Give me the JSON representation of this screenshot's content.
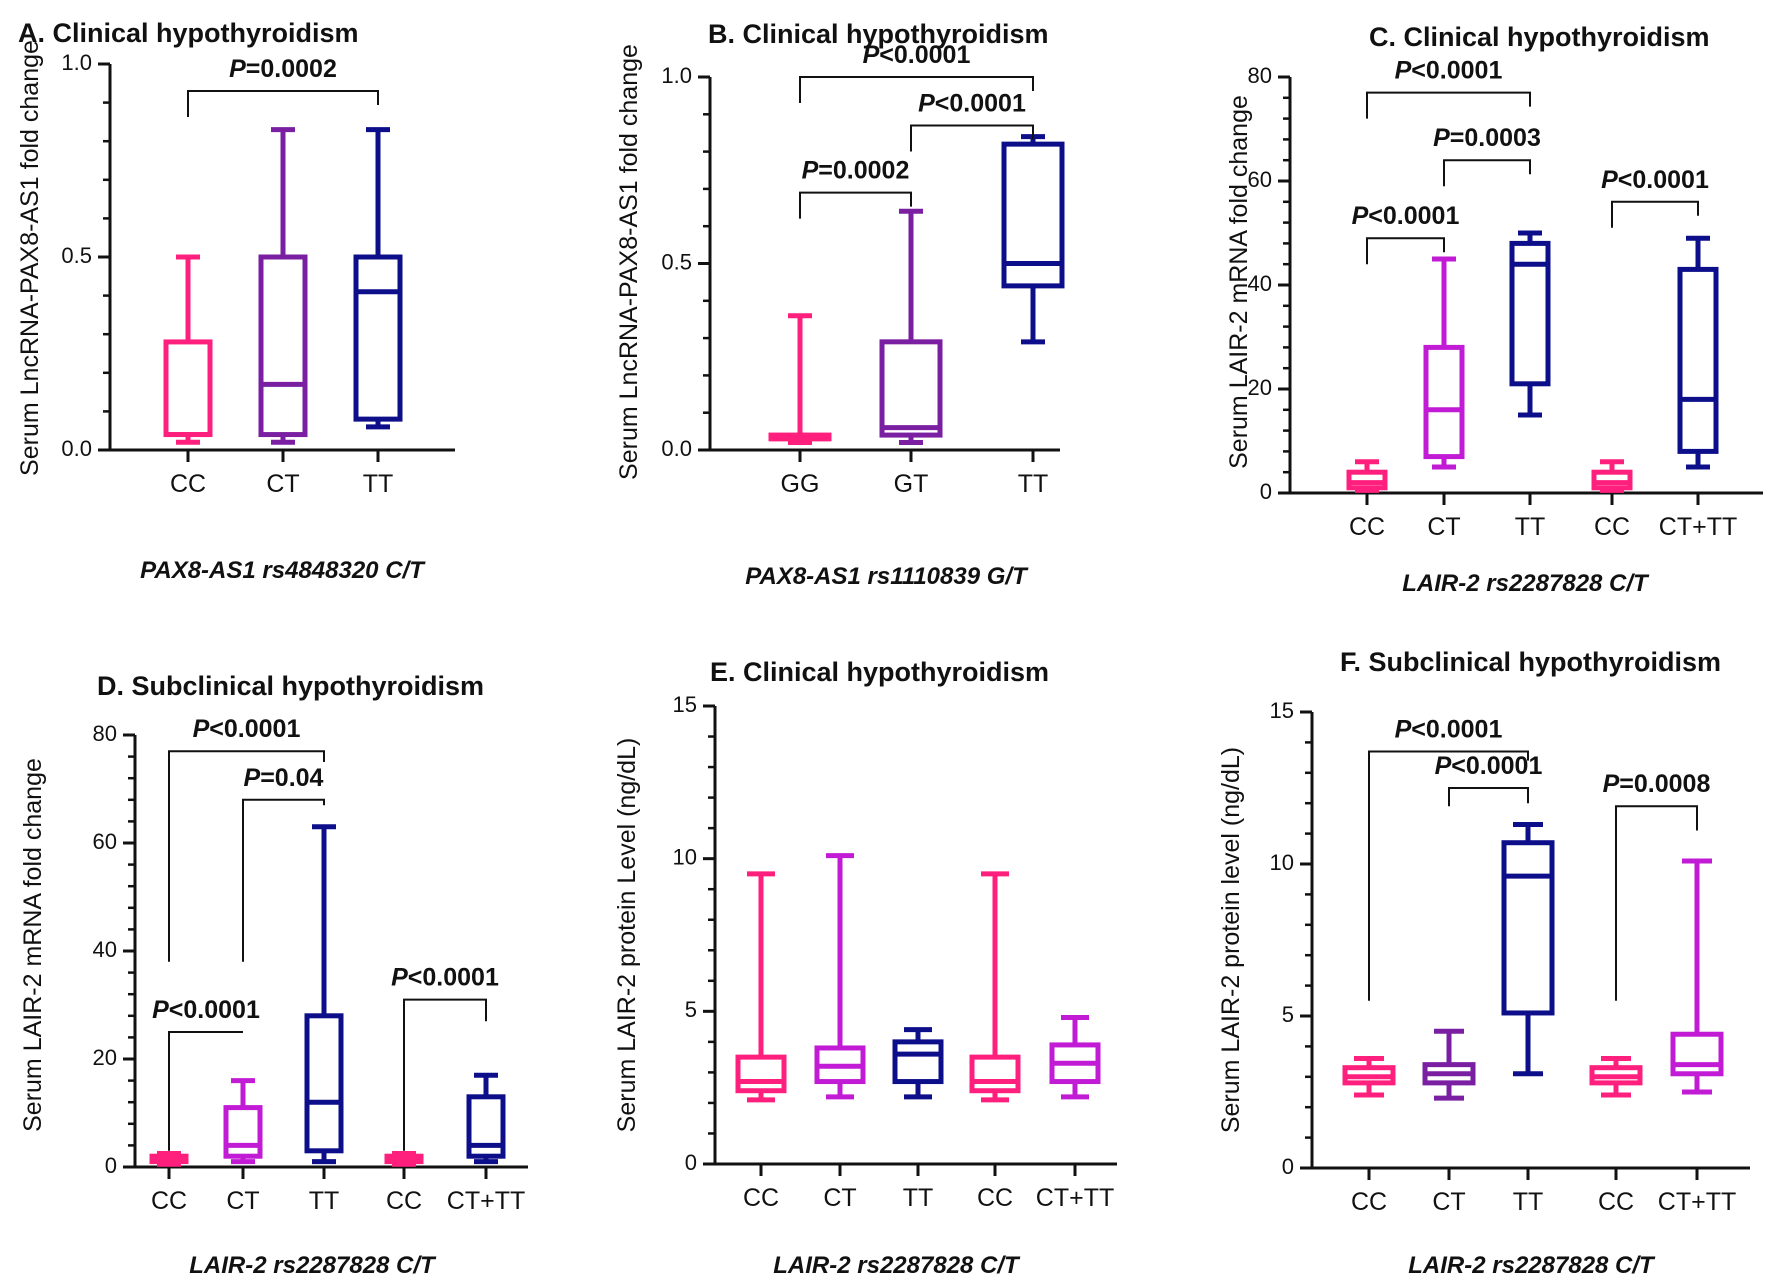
{
  "colors": {
    "pink": "#ff1f7d",
    "purple": "#7a1fa2",
    "navy": "#0d0f8a",
    "magenta": "#c21bd6",
    "axis": "#111111"
  },
  "chart_data": [
    {
      "id": "A",
      "type": "box",
      "title": "A. Clinical hypothyroidism",
      "ylabel": "Serum LncRNA-PAX8-AS1 fold change",
      "xlabel": "PAX8-AS1 rs4848320 C/T",
      "ylim": [
        0,
        1.0
      ],
      "yticks": [
        0.0,
        0.5,
        1.0
      ],
      "ytick_labels": [
        "0.0",
        "0.5",
        "1.0"
      ],
      "categories": [
        "CC",
        "CT",
        "TT"
      ],
      "boxes": [
        {
          "label": "CC",
          "color": "pink",
          "min": 0.02,
          "q1": 0.04,
          "median": 0.04,
          "q3": 0.28,
          "max": 0.5
        },
        {
          "label": "CT",
          "color": "purple",
          "min": 0.02,
          "q1": 0.04,
          "median": 0.17,
          "q3": 0.5,
          "max": 0.83
        },
        {
          "label": "TT",
          "color": "navy",
          "min": 0.06,
          "q1": 0.08,
          "median": 0.41,
          "q3": 0.5,
          "max": 0.83
        }
      ],
      "comparisons": [
        {
          "from": 0,
          "to": 2,
          "label": "=0.0002",
          "level": 0.93
        }
      ]
    },
    {
      "id": "B",
      "type": "box",
      "title": "B. Clinical hypothyroidism",
      "ylabel": "Serum LncRNA-PAX8-AS1 fold change",
      "xlabel": "PAX8-AS1 rs1110839 G/T",
      "ylim": [
        0,
        1.0
      ],
      "yticks": [
        0.0,
        0.5,
        1.0
      ],
      "ytick_labels": [
        "0.0",
        "0.5",
        "1.0"
      ],
      "categories": [
        "GG",
        "GT",
        "TT"
      ],
      "boxes": [
        {
          "label": "GG",
          "color": "pink",
          "min": 0.02,
          "q1": 0.03,
          "median": 0.03,
          "q3": 0.04,
          "max": 0.36
        },
        {
          "label": "GT",
          "color": "purple",
          "min": 0.02,
          "q1": 0.04,
          "median": 0.06,
          "q3": 0.29,
          "max": 0.64
        },
        {
          "label": "TT",
          "color": "navy",
          "min": 0.29,
          "q1": 0.44,
          "median": 0.5,
          "q3": 0.82,
          "max": 0.84
        }
      ],
      "comparisons": [
        {
          "from": 0,
          "to": 1,
          "label": "=0.0002",
          "level": 0.69
        },
        {
          "from": 1,
          "to": 2,
          "label": "<0.0001",
          "level": 0.87
        },
        {
          "from": 0,
          "to": 2,
          "label": "<0.0001",
          "level": 1.0
        }
      ]
    },
    {
      "id": "C",
      "type": "box",
      "title": "C.  Clinical hypothyroidism",
      "ylabel": "Serum LAIR-2 mRNA fold change",
      "xlabel": "LAIR-2 rs2287828 C/T",
      "ylim": [
        0,
        80
      ],
      "yticks": [
        0,
        20,
        40,
        60,
        80
      ],
      "ytick_labels": [
        "0",
        "20",
        "40",
        "60",
        "80"
      ],
      "categories": [
        "CC",
        "CT",
        "TT",
        "CC",
        "CT+TT"
      ],
      "boxes": [
        {
          "label": "CC",
          "color": "pink",
          "min": 0.5,
          "q1": 1,
          "median": 2,
          "q3": 4,
          "max": 6
        },
        {
          "label": "CT",
          "color": "magenta",
          "min": 5,
          "q1": 7,
          "median": 16,
          "q3": 28,
          "max": 45
        },
        {
          "label": "TT",
          "color": "navy",
          "min": 15,
          "q1": 21,
          "median": 44,
          "q3": 48,
          "max": 50
        },
        {
          "label": "CC",
          "color": "pink",
          "min": 0.5,
          "q1": 1,
          "median": 2,
          "q3": 4,
          "max": 6
        },
        {
          "label": "CT+TT",
          "color": "navy",
          "min": 5,
          "q1": 8,
          "median": 18,
          "q3": 43,
          "max": 49
        }
      ],
      "comparisons": [
        {
          "from": 0,
          "to": 1,
          "label": "<0.0001",
          "level": 49
        },
        {
          "from": 1,
          "to": 2,
          "label": "=0.0003",
          "level": 64
        },
        {
          "from": 0,
          "to": 2,
          "label": "<0.0001",
          "level": 77
        },
        {
          "from": 3,
          "to": 4,
          "label": "<0.0001",
          "level": 56
        }
      ]
    },
    {
      "id": "D",
      "type": "box",
      "title": "D.  Subclinical hypothyroidism",
      "ylabel": "Serum LAIR-2 mRNA fold change",
      "xlabel": "LAIR-2 rs2287828 C/T",
      "ylim": [
        0,
        80
      ],
      "yticks": [
        0,
        20,
        40,
        60,
        80
      ],
      "ytick_labels": [
        "0",
        "20",
        "40",
        "60",
        "80"
      ],
      "categories": [
        "CC",
        "CT",
        "TT",
        "CC",
        "CT+TT"
      ],
      "boxes": [
        {
          "label": "CC",
          "color": "pink",
          "min": 0.5,
          "q1": 1,
          "median": 1.5,
          "q3": 2,
          "max": 2.5
        },
        {
          "label": "CT",
          "color": "magenta",
          "min": 1,
          "q1": 2,
          "median": 4,
          "q3": 11,
          "max": 16
        },
        {
          "label": "TT",
          "color": "navy",
          "min": 1,
          "q1": 3,
          "median": 12,
          "q3": 28,
          "max": 63
        },
        {
          "label": "CC",
          "color": "pink",
          "min": 0.5,
          "q1": 1,
          "median": 1.5,
          "q3": 2,
          "max": 2.5
        },
        {
          "label": "CT+TT",
          "color": "navy",
          "min": 1,
          "q1": 2,
          "median": 4,
          "q3": 13,
          "max": 17
        }
      ],
      "comparisons": [
        {
          "from": 0,
          "to": 1,
          "label": "<0.0001",
          "level": 25,
          "leftStart": 3,
          "rightStart": 25
        },
        {
          "from": 1,
          "to": 2,
          "label": "=0.04",
          "level": 68,
          "leftStart": 38,
          "rightStart": 67
        },
        {
          "from": 0,
          "to": 2,
          "label": "<0.0001",
          "level": 77,
          "leftStart": 38,
          "rightStart": 75
        },
        {
          "from": 3,
          "to": 4,
          "label": "<0.0001",
          "level": 31,
          "leftStart": 3,
          "rightStart": 27
        }
      ]
    },
    {
      "id": "E",
      "type": "box",
      "title": "E.  Clinical hypothyroidism",
      "ylabel": "Serum LAIR-2 protein Level (ng/dL)",
      "xlabel": "LAIR-2 rs2287828 C/T",
      "ylim": [
        0,
        15
      ],
      "yticks": [
        0,
        5,
        10,
        15
      ],
      "ytick_labels": [
        "0",
        "5",
        "10",
        "15"
      ],
      "categories": [
        "CC",
        "CT",
        "TT",
        "CC",
        "CT+TT"
      ],
      "boxes": [
        {
          "label": "CC",
          "color": "pink",
          "min": 2.1,
          "q1": 2.4,
          "median": 2.7,
          "q3": 3.5,
          "max": 9.5
        },
        {
          "label": "CT",
          "color": "magenta",
          "min": 2.2,
          "q1": 2.7,
          "median": 3.2,
          "q3": 3.8,
          "max": 10.1
        },
        {
          "label": "TT",
          "color": "navy",
          "min": 2.2,
          "q1": 2.7,
          "median": 3.6,
          "q3": 4.0,
          "max": 4.4
        },
        {
          "label": "CC",
          "color": "pink",
          "min": 2.1,
          "q1": 2.4,
          "median": 2.7,
          "q3": 3.5,
          "max": 9.5
        },
        {
          "label": "CT+TT",
          "color": "magenta",
          "min": 2.2,
          "q1": 2.7,
          "median": 3.3,
          "q3": 3.9,
          "max": 4.8
        }
      ],
      "comparisons": []
    },
    {
      "id": "F",
      "type": "box",
      "title": "F.  Subclinical hypothyroidism",
      "ylabel": "Serum LAIR-2 protein level (ng/dL)",
      "xlabel": "LAIR-2 rs2287828 C/T",
      "ylim": [
        0,
        15
      ],
      "yticks": [
        0,
        5,
        10,
        15
      ],
      "ytick_labels": [
        "0",
        "5",
        "10",
        "15"
      ],
      "categories": [
        "CC",
        "CT",
        "TT",
        "CC",
        "CT+TT"
      ],
      "boxes": [
        {
          "label": "CC",
          "color": "pink",
          "min": 2.4,
          "q1": 2.8,
          "median": 3.0,
          "q3": 3.3,
          "max": 3.6
        },
        {
          "label": "CT",
          "color": "purple",
          "min": 2.3,
          "q1": 2.8,
          "median": 3.1,
          "q3": 3.4,
          "max": 4.5
        },
        {
          "label": "TT",
          "color": "navy",
          "min": 3.1,
          "q1": 5.1,
          "median": 9.6,
          "q3": 10.7,
          "max": 11.3
        },
        {
          "label": "CC",
          "color": "pink",
          "min": 2.4,
          "q1": 2.8,
          "median": 3.0,
          "q3": 3.3,
          "max": 3.6
        },
        {
          "label": "CT+TT",
          "color": "magenta",
          "min": 2.5,
          "q1": 3.1,
          "median": 3.4,
          "q3": 4.4,
          "max": 10.1
        }
      ],
      "comparisons": [
        {
          "from": 2,
          "to": 1,
          "label": "<0.0001",
          "level": 12.5,
          "leftStart": 12.0,
          "rightStart": 11.9
        },
        {
          "from": 0,
          "to": 2,
          "label": "<0.0001",
          "level": 13.7,
          "leftStart": 5.5,
          "rightStart": 13.4
        },
        {
          "from": 3,
          "to": 4,
          "label": "=0.0008",
          "level": 11.9,
          "leftStart": 5.5,
          "rightStart": 11.1
        }
      ]
    }
  ]
}
